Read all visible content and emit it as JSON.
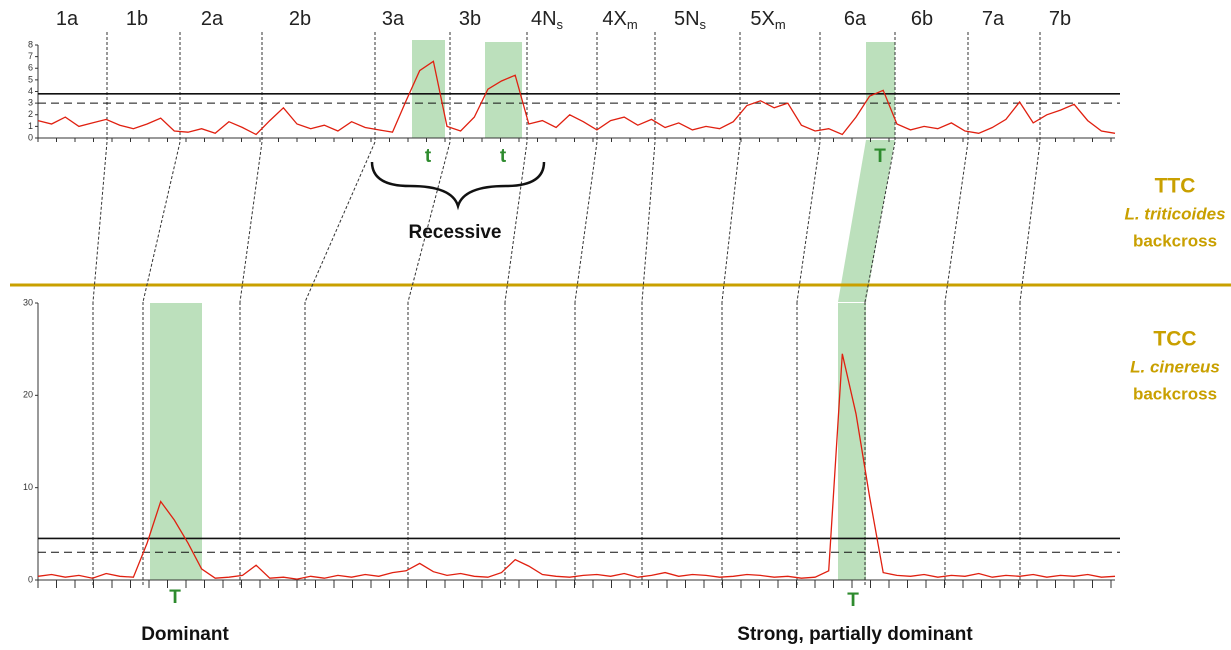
{
  "chromosomes": [
    {
      "name": "1a"
    },
    {
      "name": "1b"
    },
    {
      "name": "2a"
    },
    {
      "name": "2b"
    },
    {
      "name": "3a"
    },
    {
      "name": "3b"
    },
    {
      "name": "4N",
      "sub": "s"
    },
    {
      "name": "4X",
      "sub": "m"
    },
    {
      "name": "5N",
      "sub": "s"
    },
    {
      "name": "5X",
      "sub": "m"
    },
    {
      "name": "6a"
    },
    {
      "name": "6b"
    },
    {
      "name": "7a"
    },
    {
      "name": "7b"
    }
  ],
  "chart_data": [
    {
      "type": "line",
      "panel": "TTC",
      "color": "#e02010",
      "ylim": [
        0,
        8
      ],
      "yticks": [
        0,
        1,
        2,
        3,
        4,
        5,
        6,
        7,
        8
      ],
      "threshold_solid": 3.8,
      "threshold_dashed": 3.0,
      "values": [
        1.5,
        1.2,
        1.8,
        1.0,
        1.3,
        1.6,
        1.1,
        0.8,
        1.2,
        1.7,
        0.6,
        0.5,
        0.8,
        0.4,
        1.4,
        0.9,
        0.3,
        1.5,
        2.6,
        1.2,
        0.8,
        1.1,
        0.6,
        1.4,
        0.9,
        0.7,
        0.5,
        3.2,
        5.8,
        6.6,
        1.0,
        0.6,
        1.8,
        4.2,
        4.9,
        5.4,
        1.2,
        1.5,
        0.9,
        2.0,
        1.4,
        0.7,
        1.5,
        1.8,
        1.1,
        1.6,
        0.9,
        1.3,
        0.7,
        1.0,
        0.8,
        1.4,
        2.8,
        3.2,
        2.6,
        3.0,
        1.1,
        0.6,
        0.8,
        0.3,
        1.8,
        3.6,
        4.1,
        1.2,
        0.7,
        1.0,
        0.8,
        1.3,
        0.6,
        0.4,
        0.9,
        1.6,
        3.1,
        1.3,
        2.0,
        2.4,
        2.9,
        1.5,
        0.6,
        0.4
      ]
    },
    {
      "type": "line",
      "panel": "TCC",
      "color": "#e02010",
      "ylim": [
        0,
        30
      ],
      "yticks": [
        0,
        10,
        20,
        30
      ],
      "threshold_solid": 4.5,
      "threshold_dashed": 3.0,
      "values": [
        0.4,
        0.6,
        0.3,
        0.5,
        0.2,
        0.7,
        0.4,
        0.3,
        4.0,
        8.5,
        6.5,
        4.0,
        1.2,
        0.2,
        0.3,
        0.5,
        1.6,
        0.2,
        0.3,
        0.1,
        0.4,
        0.2,
        0.5,
        0.3,
        0.6,
        0.4,
        0.8,
        1.0,
        1.8,
        0.9,
        0.5,
        0.7,
        0.4,
        0.3,
        0.8,
        2.2,
        1.5,
        0.6,
        0.4,
        0.3,
        0.5,
        0.6,
        0.4,
        0.7,
        0.3,
        0.5,
        0.8,
        0.4,
        0.6,
        0.5,
        0.3,
        0.4,
        0.6,
        0.5,
        0.3,
        0.4,
        0.2,
        0.3,
        1.0,
        24.5,
        18.0,
        9.0,
        0.8,
        0.5,
        0.4,
        0.6,
        0.3,
        0.5,
        0.4,
        0.7,
        0.3,
        0.5,
        0.4,
        0.6,
        0.3,
        0.5,
        0.4,
        0.6,
        0.3,
        0.4
      ]
    }
  ],
  "annotations": {
    "top_t1": "t",
    "top_t2": "t",
    "top_T": "T",
    "recessive": "Recessive",
    "bottom_T1": "T",
    "bottom_T2": "T",
    "dominant": "Dominant",
    "strong": "Strong, partially dominant"
  },
  "side_labels": {
    "ttc": "TTC",
    "ttc_species": "L. triticoides",
    "ttc_cross": "backcross",
    "tcc": "TCC",
    "tcc_species": "L. cinereus",
    "tcc_cross": "backcross"
  }
}
